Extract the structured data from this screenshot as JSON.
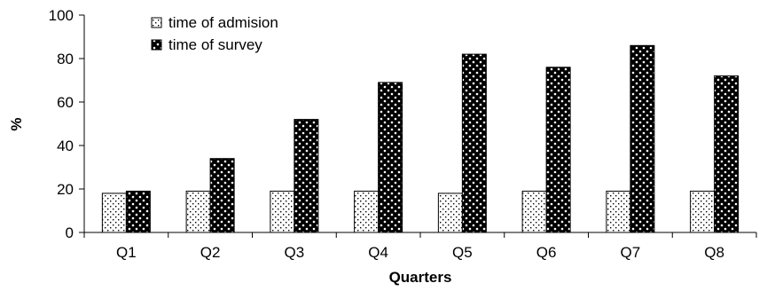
{
  "chart_data": {
    "type": "bar",
    "categories": [
      "Q1",
      "Q2",
      "Q3",
      "Q4",
      "Q5",
      "Q6",
      "Q7",
      "Q8"
    ],
    "series": [
      {
        "name": "time of admision",
        "values": [
          18,
          19,
          19,
          19,
          18,
          19,
          19,
          19
        ],
        "pattern": "light-dotted"
      },
      {
        "name": "time of survey",
        "values": [
          19,
          34,
          52,
          69,
          82,
          76,
          86,
          72
        ],
        "pattern": "dark-dotted"
      }
    ],
    "xlabel": "Quarters",
    "ylabel": "%",
    "ylim": [
      0,
      100
    ],
    "yticks": [
      0,
      20,
      40,
      60,
      80,
      100
    ],
    "grid": false,
    "legend_position": "top-left",
    "colors": {
      "light_bar_bg": "#ffffff",
      "light_bar_dot": "#000000",
      "dark_bar_bg": "#000000",
      "dark_bar_dot": "#ffffff",
      "axis": "#000000"
    }
  }
}
